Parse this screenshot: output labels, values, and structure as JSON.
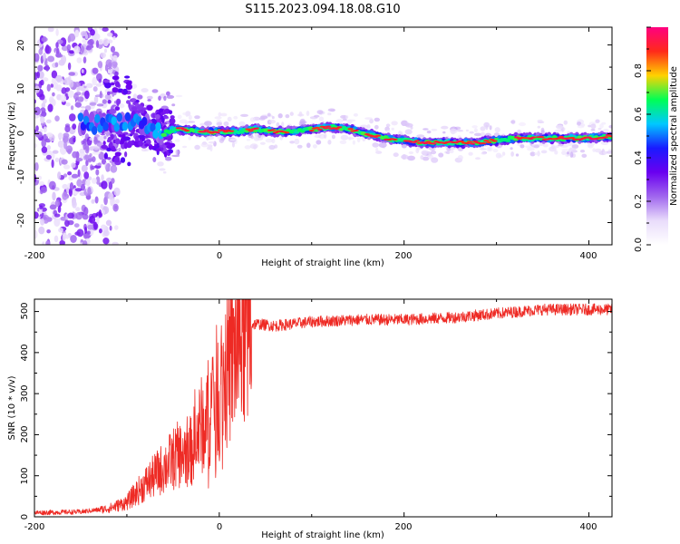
{
  "title": "S115.2023.094.18.08.G10",
  "colors": {
    "snr_line": "#ee2a24",
    "colormap": [
      "#ffffff",
      "#e9dcfb",
      "#a066ee",
      "#6a00f0",
      "#1a1aff",
      "#00c8ff",
      "#00ff55",
      "#ffd200",
      "#ff2a1a",
      "#ff0080"
    ]
  },
  "chart_data": [
    {
      "type": "heatmap",
      "xlabel": "Height of straight line (km)",
      "ylabel": "Frequency (Hz)",
      "xlim": [
        -200,
        425
      ],
      "ylim": [
        -25,
        24
      ],
      "xticks": [
        "-200",
        "0",
        "200",
        "400"
      ],
      "yticks": [
        "-20",
        "-10",
        "0",
        "10",
        "20"
      ],
      "colorbar": {
        "label": "Normalized spectral amplitude",
        "range": [
          0,
          1
        ],
        "ticks": [
          "0.0",
          "0.2",
          "0.4",
          "0.6",
          "0.8"
        ]
      },
      "ridge": {
        "x": [
          -145,
          -130,
          -110,
          -95,
          -80,
          -70,
          -60,
          -50,
          -40,
          -20,
          0,
          20,
          40,
          60,
          80,
          100,
          120,
          140,
          160,
          180,
          200,
          220,
          250,
          280,
          300,
          320,
          340,
          360,
          380,
          400,
          425
        ],
        "frequency_hz": [
          2.5,
          2,
          3,
          3,
          2,
          1,
          0,
          1,
          1,
          0.5,
          0.5,
          0.5,
          1,
          0.5,
          0.5,
          1,
          1.5,
          1,
          0,
          -1,
          -1.5,
          -2,
          -2,
          -2,
          -1.5,
          -1,
          -1,
          -1,
          -1,
          -1,
          -0.5
        ]
      },
      "noise_region_km": [
        -200,
        -125
      ]
    },
    {
      "type": "line",
      "xlabel": "Height of straight line (km)",
      "ylabel": "SNR (10 * v/v)",
      "xlim": [
        -200,
        425
      ],
      "ylim": [
        0,
        530
      ],
      "xticks": [
        "-200",
        "0",
        "200",
        "400"
      ],
      "yticks": [
        "0",
        "100",
        "200",
        "300",
        "400",
        "500"
      ],
      "series": [
        {
          "x": [
            -200,
            -150,
            -120,
            -100,
            -80,
            -60,
            -45,
            -30,
            -20,
            -10,
            0,
            10,
            20,
            30,
            40,
            60,
            100,
            150,
            200,
            250,
            300,
            350,
            400,
            425
          ],
          "y": [
            10,
            12,
            20,
            35,
            80,
            120,
            150,
            160,
            220,
            260,
            320,
            360,
            420,
            465,
            470,
            465,
            475,
            480,
            480,
            485,
            495,
            505,
            505,
            505
          ]
        }
      ]
    }
  ]
}
